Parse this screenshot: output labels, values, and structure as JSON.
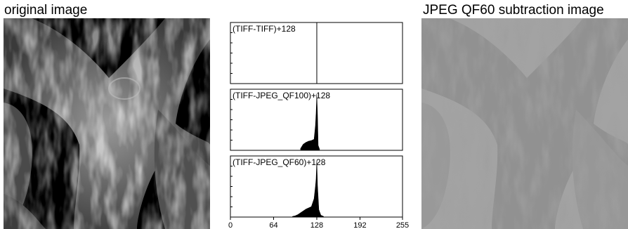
{
  "labels": {
    "left_title": "original image",
    "right_title": "JPEG QF60 subtraction image"
  },
  "chart_data": {
    "type": "histogram",
    "x_ticks": [
      0,
      64,
      128,
      192,
      255
    ],
    "xlim": [
      0,
      255
    ],
    "panels": [
      {
        "name": "(TIFF-TIFF)+128",
        "profile": [
          [
            128,
            1.0
          ]
        ]
      },
      {
        "name": "(TIFF-JPEG_QF100)+128",
        "profile": [
          [
            104,
            0.03
          ],
          [
            108,
            0.1
          ],
          [
            112,
            0.13
          ],
          [
            116,
            0.15
          ],
          [
            120,
            0.16
          ],
          [
            124,
            0.18
          ],
          [
            126,
            0.4
          ],
          [
            127,
            0.6
          ],
          [
            128,
            0.92
          ],
          [
            129,
            0.58
          ],
          [
            130,
            0.08
          ],
          [
            132,
            0.02
          ]
        ]
      },
      {
        "name": "(TIFF-JPEG_QF60)+128",
        "profile": [
          [
            92,
            0.01
          ],
          [
            96,
            0.02
          ],
          [
            100,
            0.04
          ],
          [
            104,
            0.07
          ],
          [
            108,
            0.1
          ],
          [
            112,
            0.13
          ],
          [
            116,
            0.15
          ],
          [
            120,
            0.17
          ],
          [
            124,
            0.3
          ],
          [
            126,
            0.5
          ],
          [
            127,
            0.62
          ],
          [
            128,
            0.92
          ],
          [
            129,
            0.52
          ],
          [
            131,
            0.12
          ],
          [
            134,
            0.03
          ],
          [
            138,
            0.01
          ]
        ]
      }
    ]
  }
}
